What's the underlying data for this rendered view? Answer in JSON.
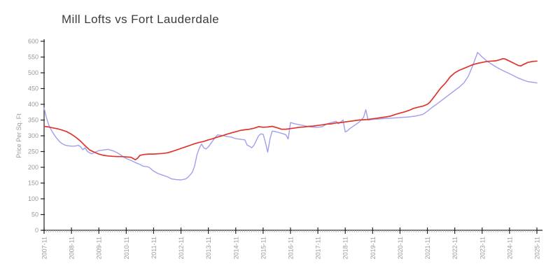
{
  "chart_data": {
    "type": "line",
    "title": "Mill Lofts vs Fort Lauderdale",
    "ylabel": "Price Per Sq. Ft",
    "xlabel": "",
    "ylim": [
      0,
      600
    ],
    "y_ticks": [
      0,
      50,
      100,
      150,
      200,
      250,
      300,
      350,
      400,
      450,
      500,
      550,
      600
    ],
    "x_tick_labels": [
      "2007-11",
      "2008-11",
      "2009-11",
      "2010-11",
      "2011-11",
      "2012-11",
      "2013-11",
      "2014-11",
      "2015-11",
      "2016-11",
      "2017-11",
      "2018-11",
      "2019-11",
      "2020-11",
      "2021-11",
      "2022-11",
      "2023-11",
      "2024-11",
      "2025-11"
    ],
    "x_unit": "months since 2007-11",
    "grid": false,
    "legend_position": "none",
    "axis_color": "#222222",
    "minor_tick_color": "#c4c4c4",
    "label_color": "#9a9a9a",
    "series": [
      {
        "name": "Mill Lofts",
        "color": "#9f9fee",
        "stroke_width": 1.4,
        "points": [
          [
            0,
            388
          ],
          [
            1,
            358
          ],
          [
            2,
            335
          ],
          [
            3,
            320
          ],
          [
            4,
            308
          ],
          [
            5,
            297
          ],
          [
            6,
            288
          ],
          [
            7,
            280
          ],
          [
            8,
            275
          ],
          [
            9,
            271
          ],
          [
            10,
            269
          ],
          [
            11,
            268
          ],
          [
            12,
            267
          ],
          [
            13,
            267
          ],
          [
            14,
            268
          ],
          [
            15,
            270
          ],
          [
            16,
            265
          ],
          [
            17,
            256
          ],
          [
            18,
            262
          ],
          [
            19,
            250
          ],
          [
            20,
            246
          ],
          [
            21,
            243
          ],
          [
            22,
            247
          ],
          [
            23,
            250
          ],
          [
            24,
            253
          ],
          [
            25,
            254
          ],
          [
            26,
            255
          ],
          [
            27,
            256
          ],
          [
            28,
            257
          ],
          [
            29,
            255
          ],
          [
            30,
            253
          ],
          [
            31,
            250
          ],
          [
            32,
            246
          ],
          [
            33,
            242
          ],
          [
            34,
            237
          ],
          [
            35,
            232
          ],
          [
            36,
            228
          ],
          [
            38,
            222
          ],
          [
            40,
            215
          ],
          [
            42,
            209
          ],
          [
            43,
            205
          ],
          [
            44,
            203
          ],
          [
            45,
            202
          ],
          [
            46,
            200
          ],
          [
            47,
            194
          ],
          [
            48,
            188
          ],
          [
            49,
            184
          ],
          [
            50,
            180
          ],
          [
            52,
            175
          ],
          [
            54,
            170
          ],
          [
            56,
            163
          ],
          [
            58,
            161
          ],
          [
            60,
            160
          ],
          [
            62,
            163
          ],
          [
            63,
            168
          ],
          [
            64,
            176
          ],
          [
            65,
            185
          ],
          [
            66,
            205
          ],
          [
            67,
            240
          ],
          [
            68,
            260
          ],
          [
            69,
            274
          ],
          [
            70,
            262
          ],
          [
            71,
            258
          ],
          [
            72,
            265
          ],
          [
            73,
            275
          ],
          [
            74,
            285
          ],
          [
            75,
            295
          ],
          [
            76,
            303
          ],
          [
            77,
            302
          ],
          [
            78,
            301
          ],
          [
            79,
            300
          ],
          [
            80,
            298
          ],
          [
            82,
            296
          ],
          [
            84,
            291
          ],
          [
            86,
            289
          ],
          [
            88,
            287
          ],
          [
            89,
            270
          ],
          [
            90,
            267
          ],
          [
            91,
            262
          ],
          [
            92,
            270
          ],
          [
            93,
            285
          ],
          [
            94,
            300
          ],
          [
            95,
            306
          ],
          [
            96,
            305
          ],
          [
            97,
            280
          ],
          [
            98,
            248
          ],
          [
            99,
            290
          ],
          [
            100,
            315
          ],
          [
            101,
            314
          ],
          [
            102,
            312
          ],
          [
            103,
            310
          ],
          [
            104,
            308
          ],
          [
            105,
            306
          ],
          [
            106,
            303
          ],
          [
            107,
            290
          ],
          [
            108,
            342
          ],
          [
            110,
            338
          ],
          [
            112,
            335
          ],
          [
            114,
            332
          ],
          [
            116,
            329
          ],
          [
            118,
            327
          ],
          [
            120,
            327
          ],
          [
            122,
            329
          ],
          [
            124,
            338
          ],
          [
            126,
            342
          ],
          [
            128,
            346
          ],
          [
            129,
            338
          ],
          [
            130,
            344
          ],
          [
            131,
            350
          ],
          [
            132,
            312
          ],
          [
            133,
            316
          ],
          [
            134,
            323
          ],
          [
            136,
            333
          ],
          [
            138,
            343
          ],
          [
            140,
            358
          ],
          [
            141,
            383
          ],
          [
            142,
            350
          ],
          [
            143,
            351
          ],
          [
            144,
            352
          ],
          [
            146,
            353
          ],
          [
            148,
            354
          ],
          [
            152,
            356
          ],
          [
            156,
            358
          ],
          [
            160,
            360
          ],
          [
            163,
            363
          ],
          [
            166,
            368
          ],
          [
            168,
            378
          ],
          [
            170,
            390
          ],
          [
            172,
            400
          ],
          [
            174,
            411
          ],
          [
            176,
            422
          ],
          [
            178,
            433
          ],
          [
            180,
            444
          ],
          [
            182,
            455
          ],
          [
            184,
            468
          ],
          [
            186,
            490
          ],
          [
            188,
            525
          ],
          [
            190,
            565
          ],
          [
            192,
            550
          ],
          [
            194,
            538
          ],
          [
            196,
            528
          ],
          [
            198,
            519
          ],
          [
            200,
            511
          ],
          [
            202,
            504
          ],
          [
            204,
            497
          ],
          [
            206,
            490
          ],
          [
            208,
            483
          ],
          [
            210,
            477
          ],
          [
            212,
            472
          ],
          [
            214,
            470
          ],
          [
            216,
            468
          ]
        ]
      },
      {
        "name": "Fort Lauderdale",
        "color": "#e0342b",
        "stroke_width": 1.7,
        "points": [
          [
            0,
            330
          ],
          [
            2,
            328
          ],
          [
            4,
            325
          ],
          [
            6,
            322
          ],
          [
            8,
            318
          ],
          [
            10,
            313
          ],
          [
            12,
            305
          ],
          [
            14,
            295
          ],
          [
            16,
            283
          ],
          [
            18,
            268
          ],
          [
            20,
            255
          ],
          [
            22,
            248
          ],
          [
            24,
            242
          ],
          [
            26,
            238
          ],
          [
            28,
            236
          ],
          [
            30,
            235
          ],
          [
            32,
            234
          ],
          [
            34,
            234
          ],
          [
            36,
            233
          ],
          [
            38,
            232
          ],
          [
            39,
            228
          ],
          [
            40,
            224
          ],
          [
            41,
            229
          ],
          [
            42,
            238
          ],
          [
            44,
            241
          ],
          [
            46,
            242
          ],
          [
            48,
            242
          ],
          [
            50,
            243
          ],
          [
            52,
            244
          ],
          [
            54,
            246
          ],
          [
            56,
            250
          ],
          [
            58,
            255
          ],
          [
            60,
            260
          ],
          [
            62,
            265
          ],
          [
            64,
            270
          ],
          [
            66,
            275
          ],
          [
            68,
            279
          ],
          [
            70,
            282
          ],
          [
            72,
            287
          ],
          [
            74,
            291
          ],
          [
            76,
            296
          ],
          [
            78,
            300
          ],
          [
            80,
            305
          ],
          [
            82,
            309
          ],
          [
            84,
            313
          ],
          [
            86,
            317
          ],
          [
            88,
            319
          ],
          [
            90,
            321
          ],
          [
            92,
            324
          ],
          [
            94,
            329
          ],
          [
            96,
            327
          ],
          [
            98,
            328
          ],
          [
            100,
            330
          ],
          [
            102,
            326
          ],
          [
            104,
            321
          ],
          [
            106,
            321
          ],
          [
            108,
            323
          ],
          [
            110,
            325
          ],
          [
            112,
            327
          ],
          [
            114,
            328
          ],
          [
            116,
            330
          ],
          [
            118,
            331
          ],
          [
            120,
            333
          ],
          [
            122,
            335
          ],
          [
            124,
            337
          ],
          [
            126,
            338
          ],
          [
            128,
            341
          ],
          [
            130,
            342
          ],
          [
            132,
            344
          ],
          [
            134,
            346
          ],
          [
            136,
            348
          ],
          [
            138,
            350
          ],
          [
            140,
            351
          ],
          [
            142,
            352
          ],
          [
            144,
            354
          ],
          [
            146,
            356
          ],
          [
            148,
            358
          ],
          [
            150,
            360
          ],
          [
            152,
            363
          ],
          [
            154,
            368
          ],
          [
            156,
            372
          ],
          [
            158,
            376
          ],
          [
            160,
            381
          ],
          [
            162,
            387
          ],
          [
            164,
            391
          ],
          [
            166,
            394
          ],
          [
            168,
            400
          ],
          [
            169,
            406
          ],
          [
            170,
            415
          ],
          [
            171,
            424
          ],
          [
            172,
            434
          ],
          [
            173,
            444
          ],
          [
            174,
            453
          ],
          [
            176,
            468
          ],
          [
            178,
            487
          ],
          [
            180,
            500
          ],
          [
            182,
            508
          ],
          [
            184,
            514
          ],
          [
            186,
            520
          ],
          [
            188,
            526
          ],
          [
            190,
            530
          ],
          [
            192,
            533
          ],
          [
            194,
            536
          ],
          [
            196,
            537
          ],
          [
            198,
            538
          ],
          [
            200,
            542
          ],
          [
            201,
            545
          ],
          [
            202,
            544
          ],
          [
            204,
            537
          ],
          [
            206,
            530
          ],
          [
            208,
            523
          ],
          [
            209,
            522
          ],
          [
            210,
            526
          ],
          [
            212,
            533
          ],
          [
            214,
            536
          ],
          [
            216,
            537
          ]
        ]
      }
    ]
  }
}
